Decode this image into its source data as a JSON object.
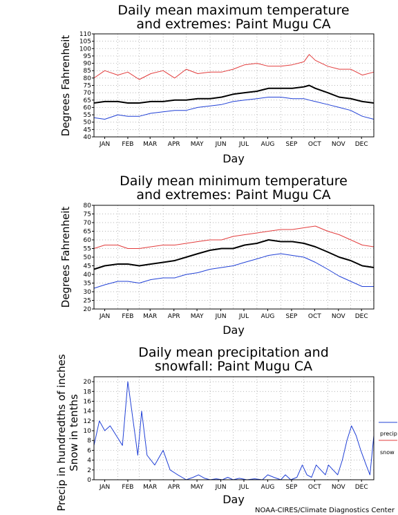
{
  "chart_data": [
    {
      "type": "line",
      "title_line1": "Daily mean maximum temperature",
      "title_line2": "and extremes: Paint Mugu CA",
      "xlabel": "Day",
      "ylabel": "Degrees Fahrenheit",
      "ylim": [
        40,
        110
      ],
      "yticks": [
        "40",
        "45",
        "50",
        "55",
        "60",
        "65",
        "70",
        "75",
        "80",
        "85",
        "90",
        "95",
        "100",
        "105",
        "110"
      ],
      "months": [
        "JAN",
        "FEB",
        "MAR",
        "APR",
        "MAY",
        "JUN",
        "JUL",
        "AUG",
        "SEP",
        "OCT",
        "NOV",
        "DEC"
      ],
      "grid": true,
      "series": [
        {
          "key": "extreme_high",
          "color": "#e23b3b",
          "x": [
            1,
            15,
            32,
            45,
            60,
            75,
            91,
            106,
            121,
            136,
            152,
            167,
            182,
            197,
            213,
            228,
            244,
            259,
            274,
            281,
            289,
            305,
            320,
            335,
            350,
            365
          ],
          "values": [
            80,
            85,
            82,
            84,
            79,
            83,
            85,
            80,
            86,
            83,
            84,
            84,
            86,
            89,
            90,
            88,
            88,
            89,
            91,
            96,
            92,
            88,
            86,
            86,
            82,
            84
          ]
        },
        {
          "key": "mean",
          "color": "#000000",
          "x": [
            1,
            15,
            32,
            45,
            60,
            75,
            91,
            106,
            121,
            136,
            152,
            167,
            182,
            197,
            213,
            228,
            244,
            259,
            274,
            281,
            289,
            305,
            320,
            335,
            350,
            365
          ],
          "values": [
            63,
            64,
            64,
            63,
            63,
            64,
            64,
            65,
            65,
            66,
            66,
            67,
            69,
            70,
            71,
            73,
            73,
            73,
            74,
            75,
            73,
            70,
            67,
            66,
            64,
            63
          ]
        },
        {
          "key": "extreme_low",
          "color": "#1f3fd6",
          "x": [
            1,
            15,
            32,
            45,
            60,
            75,
            91,
            106,
            121,
            136,
            152,
            167,
            182,
            197,
            213,
            228,
            244,
            259,
            274,
            281,
            289,
            305,
            320,
            335,
            350,
            365
          ],
          "values": [
            53,
            52,
            55,
            54,
            54,
            56,
            57,
            58,
            58,
            60,
            61,
            62,
            64,
            65,
            66,
            67,
            67,
            66,
            66,
            65,
            64,
            62,
            60,
            58,
            54,
            52
          ]
        }
      ]
    },
    {
      "type": "line",
      "title_line1": "Daily mean minimum temperature",
      "title_line2": "and extremes: Paint Mugu CA",
      "xlabel": "Day",
      "ylabel": "Degrees Fahrenheit",
      "ylim": [
        20,
        80
      ],
      "yticks": [
        "20",
        "25",
        "30",
        "35",
        "40",
        "45",
        "50",
        "55",
        "60",
        "65",
        "70",
        "75",
        "80"
      ],
      "months": [
        "JAN",
        "FEB",
        "MAR",
        "APR",
        "MAY",
        "JUN",
        "JUL",
        "AUG",
        "SEP",
        "OCT",
        "NOV",
        "DEC"
      ],
      "grid": true,
      "series": [
        {
          "key": "extreme_high",
          "color": "#e23b3b",
          "x": [
            1,
            15,
            32,
            45,
            60,
            75,
            91,
            106,
            121,
            136,
            152,
            167,
            182,
            197,
            213,
            228,
            244,
            259,
            274,
            289,
            305,
            320,
            335,
            350,
            365
          ],
          "values": [
            55,
            57,
            57,
            55,
            55,
            56,
            57,
            57,
            58,
            59,
            60,
            60,
            62,
            63,
            64,
            65,
            66,
            66,
            67,
            68,
            65,
            63,
            60,
            57,
            56
          ]
        },
        {
          "key": "mean",
          "color": "#000000",
          "x": [
            1,
            15,
            32,
            45,
            60,
            75,
            91,
            106,
            121,
            136,
            152,
            167,
            182,
            197,
            213,
            228,
            244,
            259,
            274,
            289,
            305,
            320,
            335,
            350,
            365
          ],
          "values": [
            43,
            45,
            46,
            46,
            45,
            46,
            47,
            48,
            50,
            52,
            54,
            55,
            55,
            57,
            58,
            60,
            59,
            59,
            58,
            56,
            53,
            50,
            48,
            45,
            44
          ]
        },
        {
          "key": "extreme_low",
          "color": "#1f3fd6",
          "x": [
            1,
            15,
            32,
            45,
            60,
            75,
            91,
            106,
            121,
            136,
            152,
            167,
            182,
            197,
            213,
            228,
            244,
            259,
            274,
            289,
            305,
            320,
            335,
            350,
            365
          ],
          "values": [
            32,
            34,
            36,
            36,
            35,
            37,
            38,
            38,
            40,
            41,
            43,
            44,
            45,
            47,
            49,
            51,
            52,
            51,
            50,
            47,
            43,
            39,
            36,
            33,
            33
          ]
        }
      ]
    },
    {
      "type": "line",
      "title_line1": "Daily mean precipitation and",
      "title_line2": "snowfall: Paint Mugu CA",
      "xlabel": "Day",
      "ylabel_line1": "Precip in hundredths of inches",
      "ylabel_line2": "Snow in tenths",
      "ylim": [
        0,
        21
      ],
      "yticks": [
        "0",
        "2",
        "4",
        "6",
        "8",
        "10",
        "12",
        "14",
        "16",
        "18",
        "20"
      ],
      "months": [
        "JAN",
        "FEB",
        "MAR",
        "APR",
        "MAY",
        "JUN",
        "JUL",
        "AUG",
        "SEP",
        "OCT",
        "NOV",
        "DEC"
      ],
      "grid": true,
      "legend": {
        "position": "right",
        "precip_label": "precip",
        "snow_label": "snow"
      },
      "series": [
        {
          "key": "precip",
          "color": "#1f3fd6",
          "x": [
            1,
            8,
            15,
            22,
            30,
            38,
            45,
            52,
            58,
            63,
            70,
            80,
            91,
            100,
            110,
            121,
            130,
            137,
            145,
            152,
            160,
            168,
            175,
            182,
            190,
            200,
            210,
            220,
            227,
            235,
            244,
            250,
            257,
            265,
            272,
            278,
            284,
            290,
            296,
            302,
            306,
            312,
            318,
            324,
            330,
            336,
            342,
            348,
            355,
            360,
            365
          ],
          "values": [
            7,
            12,
            10,
            11,
            9,
            7,
            20,
            12,
            5,
            14,
            5,
            3,
            6,
            2,
            1,
            0,
            0.5,
            1,
            0.3,
            0,
            0.2,
            0,
            0.5,
            0,
            0.3,
            0,
            0.2,
            0,
            1,
            0.5,
            0,
            1,
            0,
            0.5,
            3,
            1,
            0.5,
            3,
            2,
            1,
            3,
            2,
            1,
            4,
            8,
            11,
            9,
            6,
            3,
            1,
            9
          ]
        },
        {
          "key": "snow",
          "color": "#e23b3b",
          "x": [
            1,
            365
          ],
          "values": [
            0,
            0
          ]
        }
      ]
    }
  ],
  "credit": "NOAA-CIRES/Climate Diagnostics Center"
}
